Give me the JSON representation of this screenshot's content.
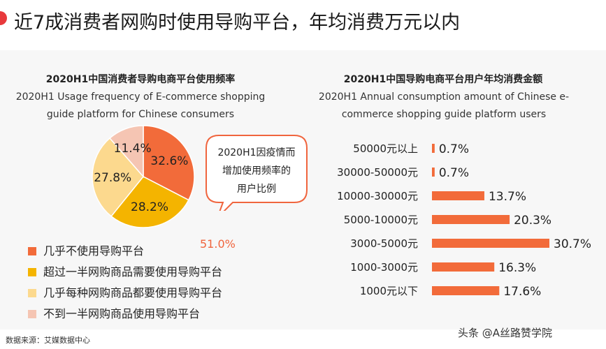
{
  "headline": "近7成消费者网购时使用导购平台，年均消费万元以内",
  "left_chart": {
    "title": "2020H1中国消费者导购电商平台使用频率",
    "subtitle_line1": "2020H1 Usage frequency of E-commerce shopping",
    "subtitle_line2": "guide platform for Chinese consumers",
    "callout_line1": "2020H1因疫情而",
    "callout_line2": "增加使用频率的",
    "callout_line3": "用户比例",
    "callout_value": "51.0%",
    "legend": [
      "几乎不使用导购平台",
      "超过一半网购商品需要使用导购平台",
      "几乎每种网购商品都要使用导购平台",
      "不到一半网购商品使用导购平台"
    ]
  },
  "right_chart": {
    "title": "2020H1中国导购电商平台用户年均消费金额",
    "subtitle_line1": "2020H1 Annual consumption amount of Chinese e-",
    "subtitle_line2": "commerce shopping guide platform users"
  },
  "source": "数据来源：艾媒数据中心",
  "watermark": "头条 @A丝路赞学院",
  "colors": {
    "accent_red": "#e8393c",
    "orange": "#f26b3a",
    "gold": "#f4b400",
    "light_yellow": "#fcd98e",
    "peach": "#f5c5b3",
    "bar": "#f26b3a"
  },
  "chart_data": [
    {
      "type": "pie",
      "title": "2020H1中国消费者导购电商平台使用频率",
      "slices": [
        {
          "label": "几乎不使用导购平台",
          "value": 32.6,
          "color": "#f26b3a"
        },
        {
          "label": "超过一半网购商品需要使用导购平台",
          "value": 28.2,
          "color": "#f4b400"
        },
        {
          "label": "几乎每种网购商品都要使用导购平台",
          "value": 27.8,
          "color": "#fcd98e"
        },
        {
          "label": "不到一半网购商品使用导购平台",
          "value": 11.4,
          "color": "#f5c5b3"
        }
      ],
      "value_labels": [
        "32.6%",
        "28.2%",
        "27.8%",
        "11.4%"
      ],
      "legend_position": "bottom-left"
    },
    {
      "type": "bar",
      "orientation": "horizontal",
      "title": "2020H1中国导购电商平台用户年均消费金额",
      "categories": [
        "50000元以上",
        "30000-50000元",
        "10000-30000元",
        "5000-10000元",
        "3000-5000元",
        "1000-3000元",
        "1000元以下"
      ],
      "values": [
        0.7,
        0.7,
        13.7,
        20.3,
        30.7,
        16.3,
        17.6
      ],
      "value_labels": [
        "0.7%",
        "0.7%",
        "13.7%",
        "20.3%",
        "30.7%",
        "16.3%",
        "17.6%"
      ],
      "xlim": [
        0,
        30.7
      ]
    }
  ]
}
